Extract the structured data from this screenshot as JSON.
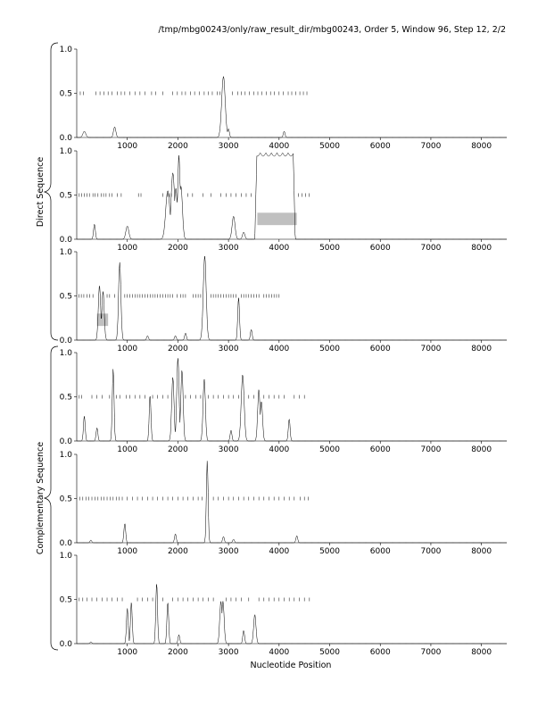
{
  "header": {
    "title": "/tmp/mbg00243/only/raw_result_dir/mbg00243, Order 5, Window 96, Step 12, 2/2"
  },
  "labels": {
    "direct": "Direct Sequence",
    "complementary": "Complementary Sequence",
    "xlabel": "Nucleotide Position"
  },
  "chart_data": {
    "type": "line",
    "xlabel": "Nucleotide Position",
    "xlim": [
      0,
      8500
    ],
    "ylim": [
      0,
      1
    ],
    "xticks": [
      1000,
      2000,
      3000,
      4000,
      5000,
      6000,
      7000,
      8000
    ],
    "yticks": [
      0.0,
      0.5,
      1.0
    ],
    "ytick_labels": [
      "0.0",
      "0.5",
      "1.0"
    ],
    "stop_codon_y": 0.5,
    "panels": [
      {
        "group": "Direct Sequence",
        "frame": 1,
        "peaks": [
          [
            150,
            0.07,
            50
          ],
          [
            750,
            0.12,
            40
          ],
          [
            2900,
            0.69,
            60
          ],
          [
            3000,
            0.1,
            30
          ],
          [
            4100,
            0.07,
            30
          ]
        ],
        "stop_codons": [
          70,
          130,
          380,
          460,
          540,
          620,
          700,
          800,
          880,
          950,
          1050,
          1150,
          1250,
          1350,
          1480,
          1560,
          1700,
          1900,
          1990,
          2080,
          2150,
          2250,
          2330,
          2420,
          2520,
          2600,
          2680,
          2780,
          2830,
          3080,
          3180,
          3250,
          3330,
          3410,
          3500,
          3580,
          3660,
          3750,
          3830,
          3910,
          4000,
          4080,
          4180,
          4250,
          4330,
          4410,
          4480,
          4550
        ],
        "orfs": []
      },
      {
        "group": "Direct Sequence",
        "frame": 2,
        "peaks": [
          [
            350,
            0.17,
            30
          ],
          [
            1000,
            0.15,
            50
          ],
          [
            1800,
            0.55,
            70
          ],
          [
            1900,
            0.75,
            60
          ],
          [
            1960,
            0.58,
            50
          ],
          [
            2020,
            0.95,
            40
          ],
          [
            2060,
            0.6,
            50
          ],
          [
            3100,
            0.26,
            50
          ],
          [
            3300,
            0.08,
            40
          ]
        ],
        "stop_codons": [
          50,
          100,
          150,
          200,
          250,
          320,
          360,
          420,
          480,
          530,
          580,
          650,
          700,
          800,
          880,
          1220,
          1270,
          1700,
          1790,
          1830,
          1870,
          2200,
          2290,
          2500,
          2650,
          2850,
          2950,
          3050,
          3150,
          3250,
          3350,
          3450,
          4380,
          4450,
          4520,
          4590
        ],
        "plateaus": [
          [
            3520,
            4320,
            0.98
          ]
        ],
        "orfs": [
          [
            3570,
            4350
          ]
        ]
      },
      {
        "group": "Direct Sequence",
        "frame": 3,
        "peaks": [
          [
            450,
            0.62,
            40
          ],
          [
            520,
            0.55,
            40
          ],
          [
            850,
            0.88,
            40
          ],
          [
            1400,
            0.05,
            30
          ],
          [
            1950,
            0.05,
            30
          ],
          [
            2150,
            0.08,
            30
          ],
          [
            2530,
            0.95,
            50
          ],
          [
            3200,
            0.48,
            30
          ],
          [
            3450,
            0.12,
            30
          ]
        ],
        "stop_codons": [
          40,
          90,
          140,
          200,
          260,
          320,
          600,
          650,
          750,
          950,
          1000,
          1050,
          1100,
          1150,
          1200,
          1250,
          1300,
          1350,
          1400,
          1450,
          1500,
          1550,
          1600,
          1650,
          1700,
          1750,
          1800,
          1850,
          1900,
          1980,
          2050,
          2100,
          2150,
          2300,
          2350,
          2400,
          2450,
          2650,
          2700,
          2750,
          2800,
          2850,
          2900,
          2950,
          3000,
          3050,
          3100,
          3150,
          3250,
          3300,
          3350,
          3400,
          3450,
          3500,
          3550,
          3600,
          3700,
          3750,
          3800,
          3850,
          3900,
          3950,
          4000
        ],
        "orfs": [
          [
            400,
            620
          ]
        ]
      },
      {
        "group": "Complementary Sequence",
        "frame": 1,
        "peaks": [
          [
            150,
            0.28,
            30
          ],
          [
            400,
            0.15,
            30
          ],
          [
            720,
            0.82,
            30
          ],
          [
            1450,
            0.52,
            30
          ],
          [
            1900,
            0.72,
            40
          ],
          [
            2000,
            0.94,
            40
          ],
          [
            2080,
            0.8,
            40
          ],
          [
            2520,
            0.7,
            40
          ],
          [
            3050,
            0.12,
            30
          ],
          [
            3280,
            0.75,
            50
          ],
          [
            3600,
            0.58,
            40
          ],
          [
            3650,
            0.45,
            40
          ],
          [
            4200,
            0.25,
            30
          ]
        ],
        "stop_codons": [
          50,
          100,
          300,
          400,
          500,
          650,
          780,
          850,
          980,
          1050,
          1150,
          1250,
          1350,
          1500,
          1600,
          1700,
          1800,
          2150,
          2250,
          2350,
          2450,
          2600,
          2700,
          2800,
          2900,
          3000,
          3100,
          3200,
          3400,
          3500,
          3700,
          3800,
          3900,
          4000,
          4100,
          4300,
          4400,
          4500
        ],
        "orfs": []
      },
      {
        "group": "Complementary Sequence",
        "frame": 2,
        "peaks": [
          [
            280,
            0.03,
            30
          ],
          [
            950,
            0.22,
            30
          ],
          [
            1950,
            0.1,
            30
          ],
          [
            2580,
            0.93,
            30
          ],
          [
            2900,
            0.07,
            30
          ],
          [
            3100,
            0.04,
            30
          ],
          [
            4350,
            0.08,
            30
          ]
        ],
        "stop_codons": [
          60,
          120,
          180,
          240,
          300,
          360,
          420,
          480,
          540,
          600,
          660,
          720,
          780,
          840,
          900,
          1000,
          1100,
          1200,
          1300,
          1400,
          1500,
          1600,
          1700,
          1800,
          1900,
          2000,
          2100,
          2200,
          2300,
          2400,
          2480,
          2700,
          2800,
          2900,
          3000,
          3100,
          3200,
          3300,
          3400,
          3500,
          3600,
          3700,
          3800,
          3900,
          4000,
          4100,
          4200,
          4300,
          4420,
          4500,
          4580
        ],
        "orfs": []
      },
      {
        "group": "Complementary Sequence",
        "frame": 3,
        "peaks": [
          [
            280,
            0.02,
            30
          ],
          [
            1000,
            0.4,
            30
          ],
          [
            1080,
            0.47,
            30
          ],
          [
            1580,
            0.68,
            30
          ],
          [
            1800,
            0.47,
            30
          ],
          [
            2020,
            0.1,
            30
          ],
          [
            2850,
            0.48,
            40
          ],
          [
            2890,
            0.48,
            40
          ],
          [
            3300,
            0.15,
            30
          ],
          [
            3520,
            0.33,
            40
          ]
        ],
        "stop_codons": [
          50,
          120,
          200,
          300,
          400,
          500,
          600,
          700,
          800,
          900,
          1200,
          1300,
          1400,
          1500,
          1700,
          1900,
          2000,
          2100,
          2200,
          2300,
          2400,
          2500,
          2600,
          2700,
          2950,
          3050,
          3150,
          3250,
          3400,
          3600,
          3700,
          3800,
          3900,
          4000,
          4100,
          4200,
          4300,
          4400,
          4500,
          4600
        ],
        "orfs": []
      }
    ]
  }
}
